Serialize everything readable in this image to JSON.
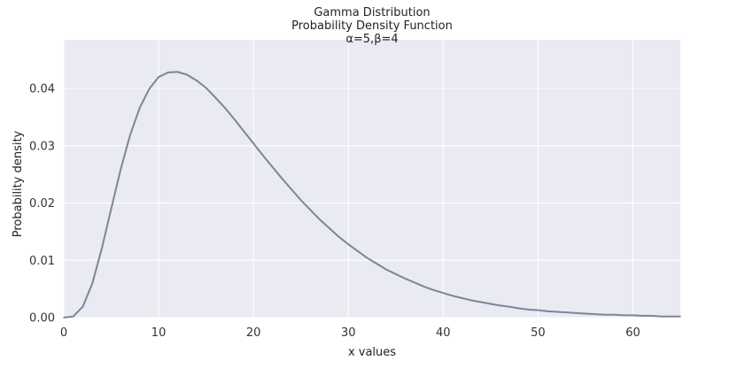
{
  "chart_data": {
    "type": "line",
    "title_lines": [
      "Gamma Distribution",
      "Probability Density Function",
      "α=5,β=4"
    ],
    "xlabel": "x values",
    "ylabel": "Probability density",
    "xlim": [
      0,
      65
    ],
    "ylim": [
      0,
      0.0485
    ],
    "xticks": [
      0,
      10,
      20,
      30,
      40,
      50,
      60
    ],
    "xtick_labels": [
      "0",
      "10",
      "20",
      "30",
      "40",
      "50",
      "60"
    ],
    "yticks": [
      0,
      0.01,
      0.02,
      0.03,
      0.04
    ],
    "ytick_labels": [
      "0.00",
      "0.01",
      "0.02",
      "0.03",
      "0.04"
    ],
    "grid": true,
    "series": [
      {
        "color": "#7a8799",
        "x": [
          0,
          1,
          2,
          3,
          4,
          5,
          6,
          7,
          8,
          9,
          10,
          11,
          12,
          13,
          14,
          15,
          16,
          17,
          18,
          19,
          20,
          21,
          22,
          23,
          24,
          25,
          26,
          27,
          28,
          29,
          30,
          31,
          32,
          33,
          34,
          35,
          36,
          37,
          38,
          39,
          40,
          41,
          42,
          43,
          44,
          45,
          46,
          47,
          48,
          49,
          50,
          51,
          52,
          53,
          54,
          55,
          56,
          57,
          58,
          59,
          60,
          61,
          62,
          63,
          64,
          65
        ],
        "y": [
          0.0,
          0.0002,
          0.0019,
          0.0059,
          0.012,
          0.019,
          0.0259,
          0.0319,
          0.0366,
          0.0399,
          0.042,
          0.0428,
          0.0429,
          0.0424,
          0.0414,
          0.0401,
          0.0384,
          0.0366,
          0.0346,
          0.0325,
          0.0304,
          0.0283,
          0.0263,
          0.0243,
          0.0224,
          0.0205,
          0.0188,
          0.0171,
          0.0156,
          0.0141,
          0.0128,
          0.0116,
          0.0104,
          0.0094,
          0.0084,
          0.0076,
          0.0068,
          0.0061,
          0.0054,
          0.0048,
          0.0043,
          0.0038,
          0.0034,
          0.003,
          0.0027,
          0.0024,
          0.0021,
          0.0019,
          0.0016,
          0.0014,
          0.0013,
          0.0011,
          0.001,
          0.0009,
          0.0008,
          0.0007,
          0.0006,
          0.0005,
          0.0005,
          0.0004,
          0.0004,
          0.0003,
          0.0003,
          0.0002,
          0.0002,
          0.0002
        ]
      }
    ],
    "colors": {
      "plot_background": "#eaeaf2",
      "grid": "#ffffff",
      "line": "#7a8799"
    }
  }
}
